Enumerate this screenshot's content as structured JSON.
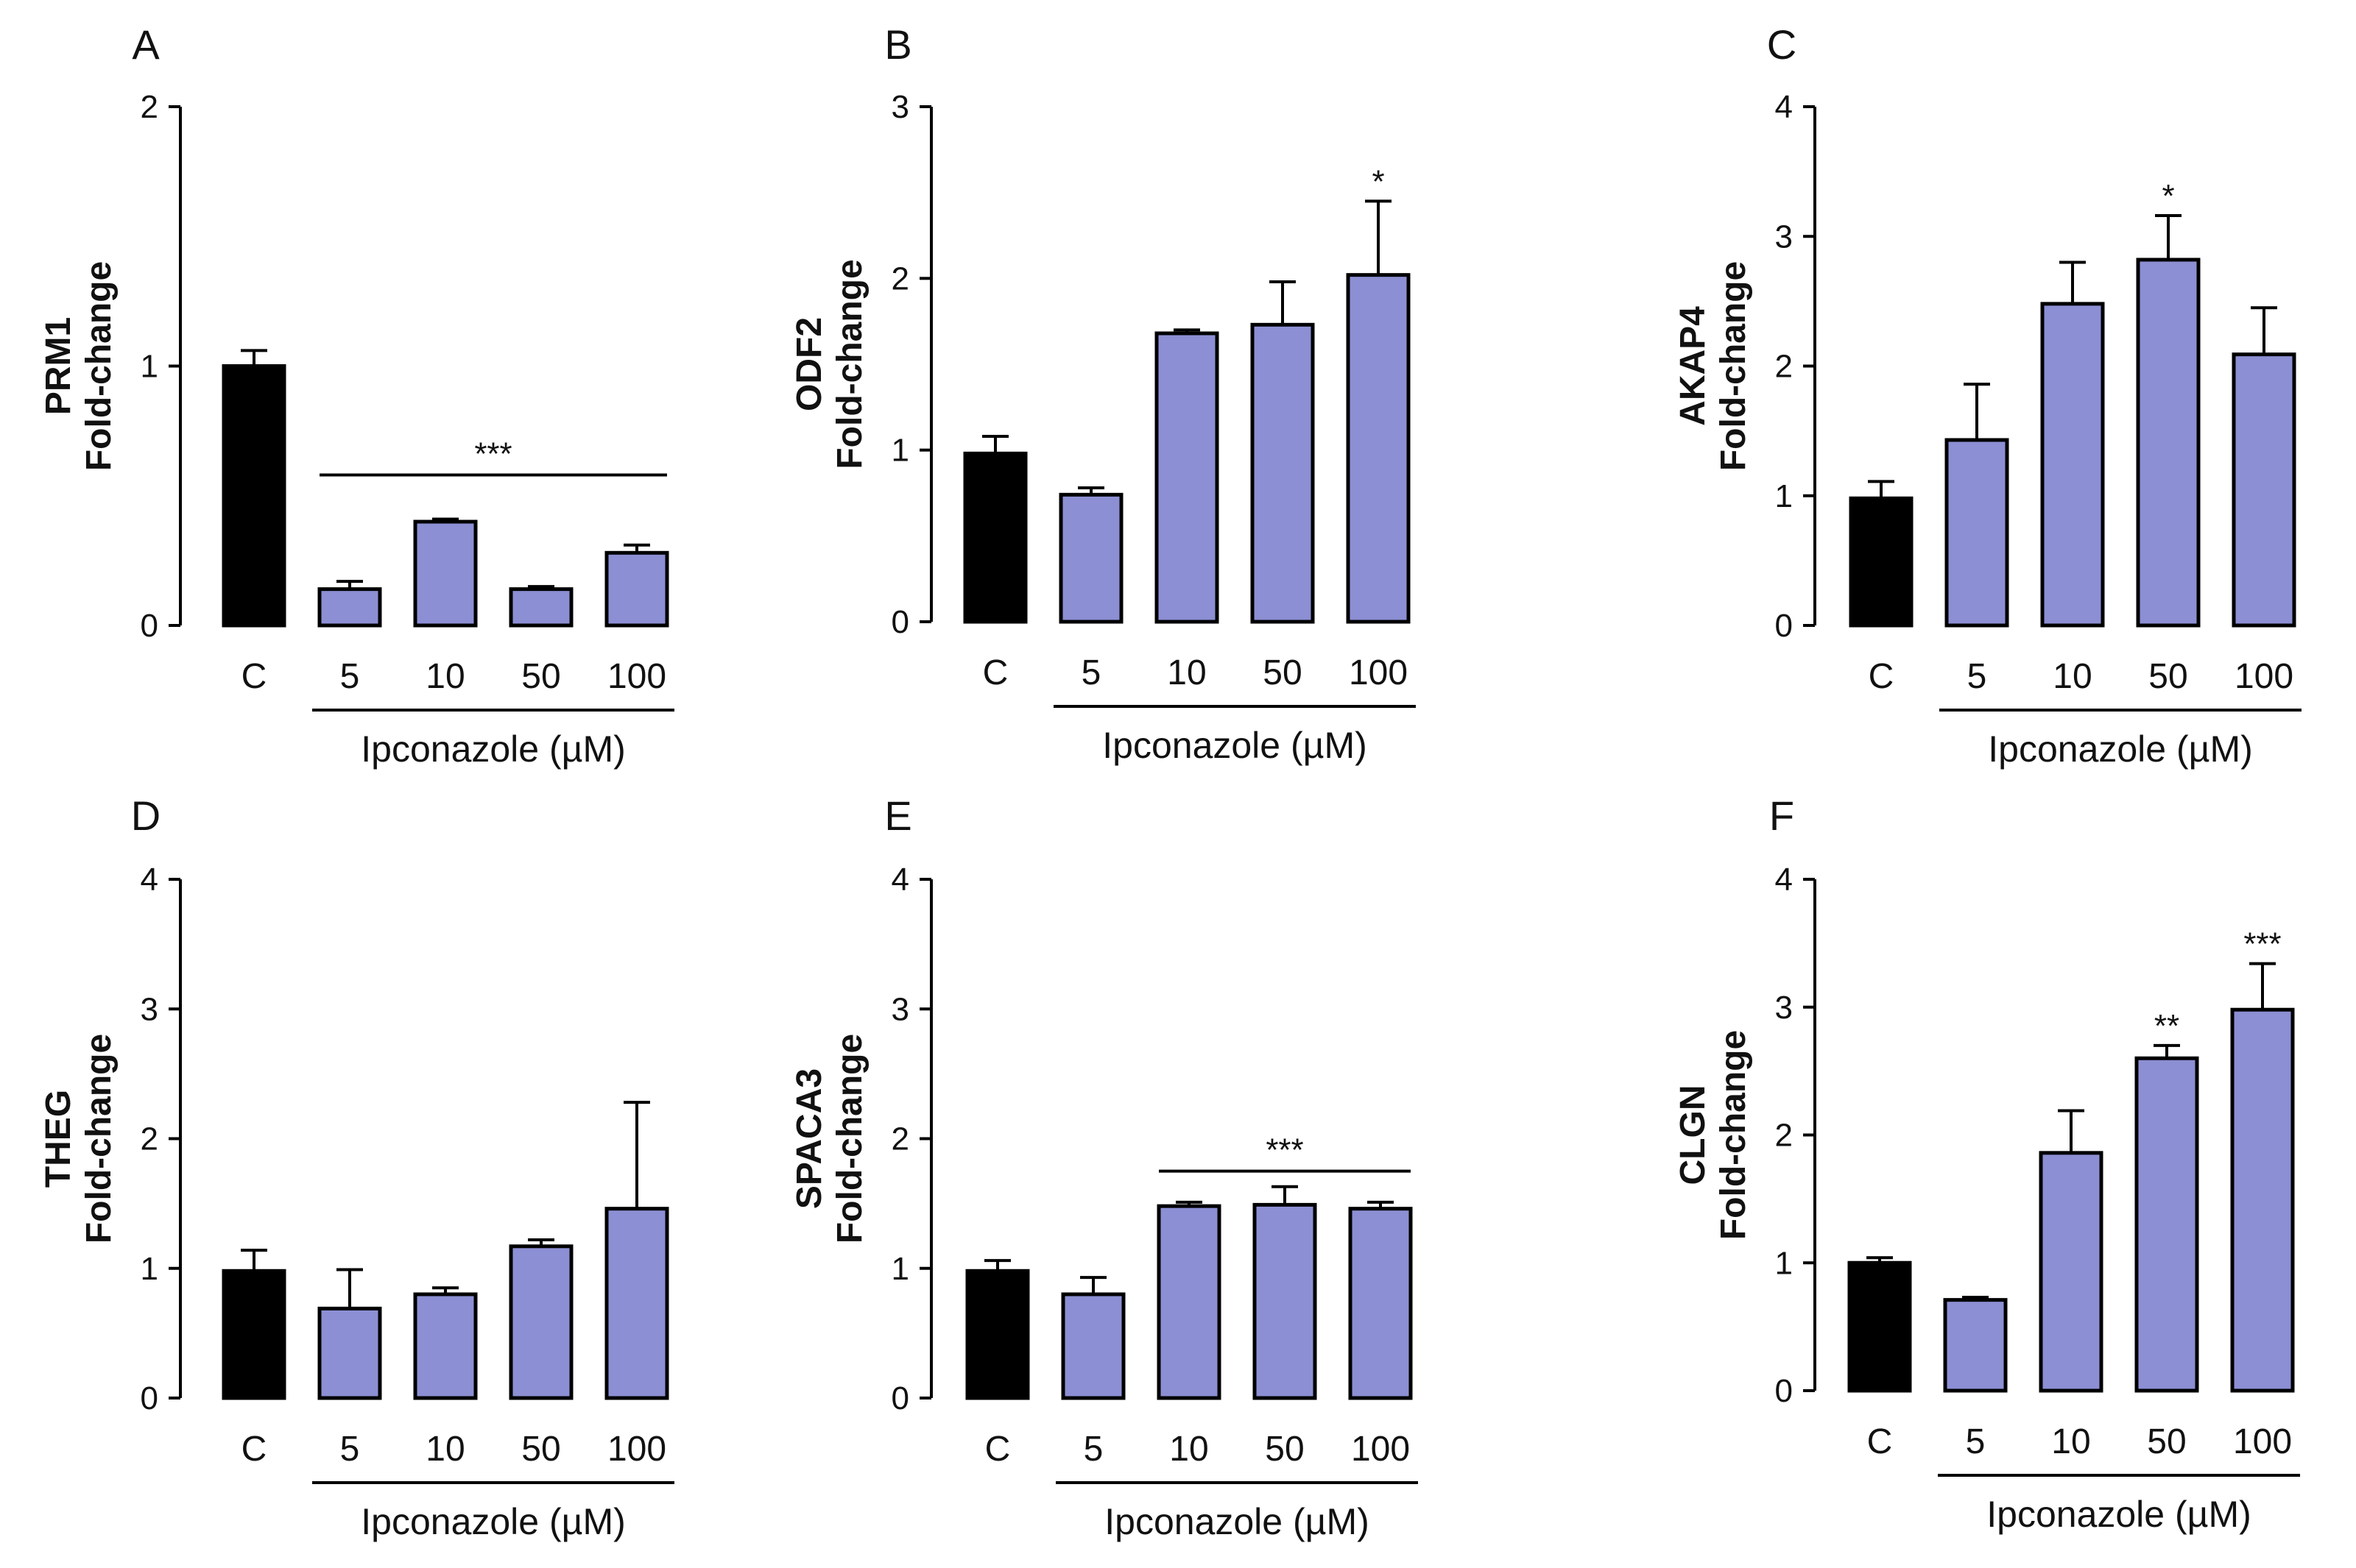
{
  "colors": {
    "control": "#000000",
    "treated": "#8c8fd3",
    "axis": "#000000"
  },
  "panels": [
    {
      "letter": "A",
      "gene": "PRM1",
      "ylabel": "Fold-change",
      "yticks": [
        0,
        1,
        2
      ],
      "ylim": [
        0,
        2
      ],
      "categories": [
        "C",
        "5",
        "10",
        "50",
        "100"
      ],
      "values": [
        1.0,
        0.14,
        0.4,
        0.14,
        0.28
      ],
      "errors": [
        0.06,
        0.03,
        0.01,
        0.01,
        0.03
      ],
      "xlabel": "Ipconazole (µM)",
      "sig_bar": {
        "label": "***",
        "from": 1,
        "to": 4,
        "y": 0.58
      },
      "sig": [
        "",
        "",
        "",
        "",
        ""
      ]
    },
    {
      "letter": "B",
      "gene": "ODF2",
      "ylabel": "Fold-change",
      "yticks": [
        0,
        1,
        2,
        3
      ],
      "ylim": [
        0,
        3
      ],
      "categories": [
        "C",
        "5",
        "10",
        "50",
        "100"
      ],
      "values": [
        0.98,
        0.74,
        1.68,
        1.73,
        2.02
      ],
      "errors": [
        0.1,
        0.04,
        0.02,
        0.25,
        0.43
      ],
      "xlabel": "Ipconazole (µM)",
      "sig_bar": null,
      "sig": [
        "",
        "",
        "",
        "",
        "*"
      ]
    },
    {
      "letter": "C",
      "gene": "AKAP4",
      "ylabel": "Fold-change",
      "yticks": [
        0,
        1,
        2,
        3,
        4
      ],
      "ylim": [
        0,
        4
      ],
      "categories": [
        "C",
        "5",
        "10",
        "50",
        "100"
      ],
      "values": [
        0.98,
        1.43,
        2.48,
        2.82,
        2.09
      ],
      "errors": [
        0.13,
        0.43,
        0.32,
        0.34,
        0.36
      ],
      "xlabel": "Ipconazole (µM)",
      "sig_bar": null,
      "sig": [
        "",
        "",
        "",
        "*",
        ""
      ]
    },
    {
      "letter": "D",
      "gene": "THEG",
      "ylabel": "Fold-change",
      "yticks": [
        0,
        1,
        2,
        3,
        4
      ],
      "ylim": [
        0,
        4
      ],
      "categories": [
        "C",
        "5",
        "10",
        "50",
        "100"
      ],
      "values": [
        0.98,
        0.69,
        0.8,
        1.17,
        1.46
      ],
      "errors": [
        0.16,
        0.3,
        0.05,
        0.05,
        0.82
      ],
      "xlabel": "Ipconazole (µM)",
      "sig_bar": null,
      "sig": [
        "",
        "",
        "",
        "",
        ""
      ]
    },
    {
      "letter": "E",
      "gene": "SPACA3",
      "ylabel": "Fold-change",
      "yticks": [
        0,
        1,
        2,
        3,
        4
      ],
      "ylim": [
        0,
        4
      ],
      "categories": [
        "C",
        "5",
        "10",
        "50",
        "100"
      ],
      "values": [
        0.98,
        0.8,
        1.48,
        1.49,
        1.46
      ],
      "errors": [
        0.08,
        0.13,
        0.03,
        0.14,
        0.05
      ],
      "xlabel": "Ipconazole (µM)",
      "sig_bar": {
        "label": "***",
        "from": 2,
        "to": 4,
        "y": 1.75
      },
      "sig": [
        "",
        "",
        "",
        "",
        ""
      ]
    },
    {
      "letter": "F",
      "gene": "CLGN",
      "ylabel": "Fold-change",
      "yticks": [
        0,
        1,
        2,
        3,
        4
      ],
      "ylim": [
        0,
        4
      ],
      "categories": [
        "C",
        "5",
        "10",
        "50",
        "100"
      ],
      "values": [
        1.0,
        0.71,
        1.86,
        2.6,
        2.98
      ],
      "errors": [
        0.04,
        0.02,
        0.33,
        0.1,
        0.36
      ],
      "xlabel": "Ipconazole (µM)",
      "sig_bar": null,
      "sig": [
        "",
        "",
        "",
        "**",
        "***"
      ]
    }
  ]
}
